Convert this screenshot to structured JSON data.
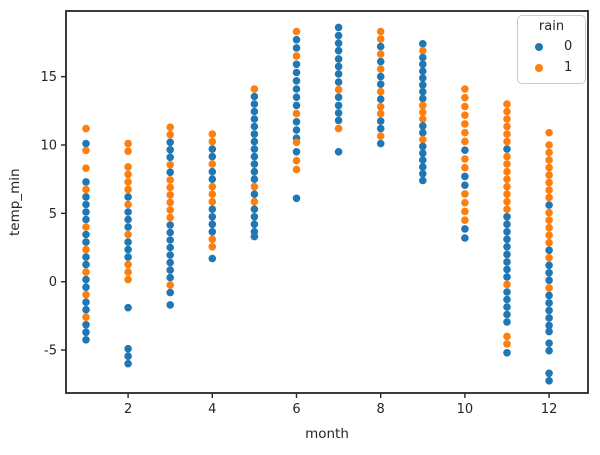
{
  "figure": {
    "background": "#ffffff"
  },
  "axes": {
    "xlabel": "month",
    "ylabel": "temp_min",
    "x_ticks": [
      2,
      4,
      6,
      8,
      10,
      12
    ],
    "y_ticks": [
      -5,
      0,
      5,
      10,
      15
    ],
    "spine_color": "#262626",
    "tick_label_color": "#262626"
  },
  "legend": {
    "title": "rain",
    "items": [
      {
        "label": "0",
        "color": "#1f77b4"
      },
      {
        "label": "1",
        "color": "#ff7f0e"
      }
    ]
  },
  "chart_data": {
    "type": "scatter",
    "title": "",
    "xlabel": "month",
    "ylabel": "temp_min",
    "xlim": [
      0.45,
      12.55
    ],
    "ylim": [
      -8.5,
      19.8
    ],
    "grid": false,
    "legend_title": "rain",
    "legend_position": "upper right",
    "series_colors": {
      "0": "#1f77b4",
      "1": "#ff7f0e"
    },
    "point_format": [
      "month",
      "temp_min",
      "rain"
    ],
    "points": [
      [
        1,
        11.2,
        1
      ],
      [
        1,
        10.1,
        0
      ],
      [
        1,
        9.6,
        1
      ],
      [
        1,
        8.3,
        1
      ],
      [
        1,
        7.3,
        0
      ],
      [
        1,
        6.75,
        1
      ],
      [
        1,
        6.2,
        0
      ],
      [
        1,
        5.65,
        0
      ],
      [
        1,
        5.1,
        0
      ],
      [
        1,
        4.55,
        0
      ],
      [
        1,
        4.0,
        1
      ],
      [
        1,
        3.45,
        0
      ],
      [
        1,
        2.9,
        0
      ],
      [
        1,
        2.35,
        1
      ],
      [
        1,
        1.8,
        0
      ],
      [
        1,
        1.25,
        0
      ],
      [
        1,
        0.7,
        1
      ],
      [
        1,
        0.15,
        0
      ],
      [
        1,
        -0.4,
        0
      ],
      [
        1,
        -0.95,
        1
      ],
      [
        1,
        -1.5,
        0
      ],
      [
        1,
        -2.05,
        0
      ],
      [
        1,
        -2.6,
        1
      ],
      [
        1,
        -3.15,
        0
      ],
      [
        1,
        -3.7,
        0
      ],
      [
        1,
        -4.25,
        0
      ],
      [
        2,
        10.1,
        1
      ],
      [
        2,
        9.55,
        1
      ],
      [
        2,
        8.4,
        1
      ],
      [
        2,
        7.85,
        1
      ],
      [
        2,
        7.3,
        1
      ],
      [
        2,
        6.75,
        1
      ],
      [
        2,
        6.2,
        0
      ],
      [
        2,
        5.65,
        1
      ],
      [
        2,
        5.1,
        0
      ],
      [
        2,
        4.55,
        0
      ],
      [
        2,
        4.0,
        0
      ],
      [
        2,
        3.45,
        1
      ],
      [
        2,
        2.9,
        0
      ],
      [
        2,
        2.35,
        0
      ],
      [
        2,
        1.8,
        0
      ],
      [
        2,
        1.25,
        1
      ],
      [
        2,
        0.7,
        1
      ],
      [
        2,
        0.15,
        1
      ],
      [
        2,
        -1.9,
        0
      ],
      [
        2,
        -4.9,
        0
      ],
      [
        2,
        -5.45,
        0
      ],
      [
        2,
        -6.0,
        0
      ],
      [
        3,
        11.3,
        1
      ],
      [
        3,
        10.75,
        1
      ],
      [
        3,
        10.2,
        0
      ],
      [
        3,
        9.65,
        0
      ],
      [
        3,
        9.1,
        0
      ],
      [
        3,
        8.55,
        1
      ],
      [
        3,
        8.0,
        0
      ],
      [
        3,
        7.45,
        1
      ],
      [
        3,
        6.9,
        1
      ],
      [
        3,
        6.35,
        1
      ],
      [
        3,
        5.8,
        1
      ],
      [
        3,
        5.25,
        1
      ],
      [
        3,
        4.7,
        1
      ],
      [
        3,
        4.15,
        0
      ],
      [
        3,
        3.6,
        0
      ],
      [
        3,
        3.05,
        0
      ],
      [
        3,
        2.5,
        0
      ],
      [
        3,
        1.95,
        0
      ],
      [
        3,
        1.4,
        0
      ],
      [
        3,
        0.85,
        0
      ],
      [
        3,
        0.3,
        0
      ],
      [
        3,
        -0.25,
        1
      ],
      [
        3,
        -0.8,
        0
      ],
      [
        3,
        -1.7,
        0
      ],
      [
        4,
        10.8,
        1
      ],
      [
        4,
        10.25,
        1
      ],
      [
        4,
        9.7,
        0
      ],
      [
        4,
        9.15,
        0
      ],
      [
        4,
        8.6,
        1
      ],
      [
        4,
        8.05,
        0
      ],
      [
        4,
        7.5,
        0
      ],
      [
        4,
        6.95,
        1
      ],
      [
        4,
        6.4,
        1
      ],
      [
        4,
        5.85,
        1
      ],
      [
        4,
        5.3,
        0
      ],
      [
        4,
        4.75,
        0
      ],
      [
        4,
        4.2,
        0
      ],
      [
        4,
        3.65,
        0
      ],
      [
        4,
        3.1,
        1
      ],
      [
        4,
        2.55,
        1
      ],
      [
        4,
        1.7,
        0
      ],
      [
        5,
        14.1,
        1
      ],
      [
        5,
        13.55,
        0
      ],
      [
        5,
        13.0,
        0
      ],
      [
        5,
        12.45,
        0
      ],
      [
        5,
        11.9,
        0
      ],
      [
        5,
        11.35,
        0
      ],
      [
        5,
        10.8,
        0
      ],
      [
        5,
        10.25,
        0
      ],
      [
        5,
        9.7,
        0
      ],
      [
        5,
        9.15,
        0
      ],
      [
        5,
        8.6,
        0
      ],
      [
        5,
        8.05,
        0
      ],
      [
        5,
        7.5,
        0
      ],
      [
        5,
        6.95,
        1
      ],
      [
        5,
        6.4,
        0
      ],
      [
        5,
        5.85,
        1
      ],
      [
        5,
        5.3,
        0
      ],
      [
        5,
        4.75,
        0
      ],
      [
        5,
        4.2,
        0
      ],
      [
        5,
        3.65,
        0
      ],
      [
        5,
        3.3,
        0
      ],
      [
        6,
        18.3,
        1
      ],
      [
        6,
        17.7,
        0
      ],
      [
        6,
        17.1,
        0
      ],
      [
        6,
        16.5,
        1
      ],
      [
        6,
        15.9,
        0
      ],
      [
        6,
        15.3,
        0
      ],
      [
        6,
        14.7,
        0
      ],
      [
        6,
        14.1,
        0
      ],
      [
        6,
        13.5,
        0
      ],
      [
        6,
        12.9,
        0
      ],
      [
        6,
        12.3,
        1
      ],
      [
        6,
        11.7,
        0
      ],
      [
        6,
        11.1,
        0
      ],
      [
        6,
        10.5,
        0
      ],
      [
        6,
        10.2,
        1
      ],
      [
        6,
        9.5,
        0
      ],
      [
        6,
        8.85,
        1
      ],
      [
        6,
        8.2,
        1
      ],
      [
        6,
        6.1,
        0
      ],
      [
        7,
        18.6,
        0
      ],
      [
        7,
        18.0,
        0
      ],
      [
        7,
        17.45,
        0
      ],
      [
        7,
        16.9,
        0
      ],
      [
        7,
        16.3,
        0
      ],
      [
        7,
        15.75,
        0
      ],
      [
        7,
        15.2,
        0
      ],
      [
        7,
        14.6,
        0
      ],
      [
        7,
        14.05,
        1
      ],
      [
        7,
        13.5,
        0
      ],
      [
        7,
        12.9,
        0
      ],
      [
        7,
        12.35,
        0
      ],
      [
        7,
        11.8,
        0
      ],
      [
        7,
        11.2,
        1
      ],
      [
        7,
        9.5,
        0
      ],
      [
        8,
        18.3,
        1
      ],
      [
        8,
        17.75,
        1
      ],
      [
        8,
        17.2,
        0
      ],
      [
        8,
        16.65,
        1
      ],
      [
        8,
        16.1,
        0
      ],
      [
        8,
        15.55,
        1
      ],
      [
        8,
        15.0,
        0
      ],
      [
        8,
        14.45,
        0
      ],
      [
        8,
        13.9,
        1
      ],
      [
        8,
        13.35,
        0
      ],
      [
        8,
        12.8,
        1
      ],
      [
        8,
        12.3,
        1
      ],
      [
        8,
        11.75,
        0
      ],
      [
        8,
        11.2,
        0
      ],
      [
        8,
        10.65,
        1
      ],
      [
        8,
        10.1,
        0
      ],
      [
        9,
        17.4,
        0
      ],
      [
        9,
        16.9,
        1
      ],
      [
        9,
        16.4,
        0
      ],
      [
        9,
        15.9,
        0
      ],
      [
        9,
        15.4,
        0
      ],
      [
        9,
        14.9,
        0
      ],
      [
        9,
        14.4,
        0
      ],
      [
        9,
        13.9,
        0
      ],
      [
        9,
        13.4,
        0
      ],
      [
        9,
        12.9,
        1
      ],
      [
        9,
        12.4,
        1
      ],
      [
        9,
        11.9,
        1
      ],
      [
        9,
        11.4,
        0
      ],
      [
        9,
        10.9,
        0
      ],
      [
        9,
        10.4,
        1
      ],
      [
        9,
        9.9,
        0
      ],
      [
        9,
        9.4,
        0
      ],
      [
        9,
        8.9,
        0
      ],
      [
        9,
        8.4,
        0
      ],
      [
        9,
        7.9,
        0
      ],
      [
        9,
        7.4,
        0
      ],
      [
        10,
        14.1,
        1
      ],
      [
        10,
        13.46,
        1
      ],
      [
        10,
        12.82,
        1
      ],
      [
        10,
        12.18,
        1
      ],
      [
        10,
        11.54,
        1
      ],
      [
        10,
        10.9,
        1
      ],
      [
        10,
        10.26,
        1
      ],
      [
        10,
        9.62,
        0
      ],
      [
        10,
        8.98,
        1
      ],
      [
        10,
        8.34,
        1
      ],
      [
        10,
        7.7,
        0
      ],
      [
        10,
        7.06,
        0
      ],
      [
        10,
        6.42,
        1
      ],
      [
        10,
        5.78,
        1
      ],
      [
        10,
        5.14,
        1
      ],
      [
        10,
        4.5,
        1
      ],
      [
        10,
        3.86,
        0
      ],
      [
        10,
        3.2,
        0
      ],
      [
        11,
        13.0,
        1
      ],
      [
        11,
        12.45,
        1
      ],
      [
        11,
        11.9,
        1
      ],
      [
        11,
        11.35,
        1
      ],
      [
        11,
        10.8,
        1
      ],
      [
        11,
        10.25,
        1
      ],
      [
        11,
        9.7,
        0
      ],
      [
        11,
        9.15,
        1
      ],
      [
        11,
        8.6,
        1
      ],
      [
        11,
        8.05,
        1
      ],
      [
        11,
        7.5,
        1
      ],
      [
        11,
        6.95,
        1
      ],
      [
        11,
        6.4,
        1
      ],
      [
        11,
        5.85,
        1
      ],
      [
        11,
        5.3,
        1
      ],
      [
        11,
        4.75,
        0
      ],
      [
        11,
        4.2,
        0
      ],
      [
        11,
        3.65,
        0
      ],
      [
        11,
        3.1,
        0
      ],
      [
        11,
        2.55,
        0
      ],
      [
        11,
        2.0,
        0
      ],
      [
        11,
        1.45,
        0
      ],
      [
        11,
        0.9,
        0
      ],
      [
        11,
        0.35,
        0
      ],
      [
        11,
        -0.2,
        1
      ],
      [
        11,
        -0.75,
        0
      ],
      [
        11,
        -1.3,
        0
      ],
      [
        11,
        -1.85,
        0
      ],
      [
        11,
        -2.4,
        0
      ],
      [
        11,
        -2.95,
        0
      ],
      [
        11,
        -4.0,
        1
      ],
      [
        11,
        -4.55,
        1
      ],
      [
        11,
        -5.2,
        0
      ],
      [
        12,
        10.9,
        1
      ],
      [
        12,
        10.0,
        1
      ],
      [
        12,
        9.45,
        1
      ],
      [
        12,
        8.9,
        1
      ],
      [
        12,
        8.35,
        1
      ],
      [
        12,
        7.8,
        1
      ],
      [
        12,
        7.25,
        1
      ],
      [
        12,
        6.7,
        1
      ],
      [
        12,
        6.15,
        1
      ],
      [
        12,
        5.6,
        0
      ],
      [
        12,
        5.05,
        1
      ],
      [
        12,
        4.5,
        1
      ],
      [
        12,
        3.95,
        1
      ],
      [
        12,
        3.4,
        1
      ],
      [
        12,
        2.85,
        1
      ],
      [
        12,
        2.3,
        0
      ],
      [
        12,
        1.75,
        1
      ],
      [
        12,
        1.2,
        0
      ],
      [
        12,
        0.65,
        0
      ],
      [
        12,
        0.1,
        0
      ],
      [
        12,
        -0.45,
        1
      ],
      [
        12,
        -1.0,
        0
      ],
      [
        12,
        -1.55,
        0
      ],
      [
        12,
        -2.1,
        0
      ],
      [
        12,
        -2.65,
        0
      ],
      [
        12,
        -3.2,
        0
      ],
      [
        12,
        -3.65,
        0
      ],
      [
        12,
        -4.5,
        0
      ],
      [
        12,
        -5.05,
        0
      ],
      [
        12,
        -6.7,
        0
      ],
      [
        12,
        -7.25,
        0
      ]
    ]
  }
}
